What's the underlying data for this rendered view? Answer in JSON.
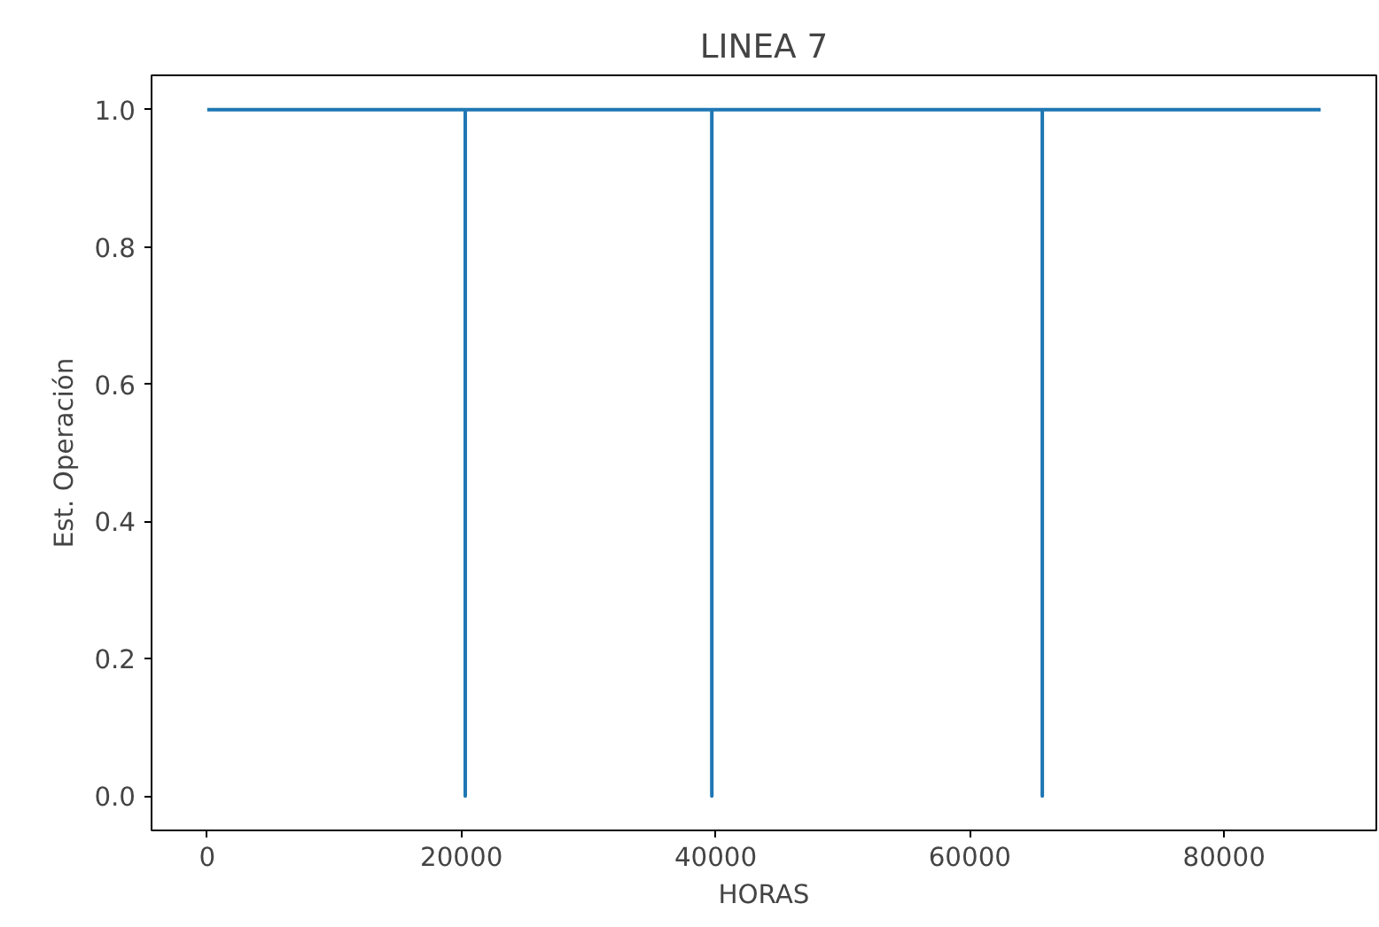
{
  "chart_data": {
    "type": "line",
    "title": "LINEA 7",
    "xlabel": "HORAS",
    "ylabel": "Est. Operación",
    "x": [
      0,
      20300,
      20300,
      20300,
      39700,
      39700,
      39700,
      65700,
      65700,
      65700,
      87600
    ],
    "series": [
      {
        "color": "#1f77b4",
        "values": [
          1,
          1,
          0,
          1,
          1,
          0,
          1,
          1,
          0,
          1,
          1
        ]
      }
    ],
    "xlim": [
      -4380,
      91980
    ],
    "ylim": [
      -0.05,
      1.05
    ],
    "xticks": [
      0,
      20000,
      40000,
      60000,
      80000
    ],
    "yticks": [
      {
        "value": 0,
        "label": "0.0"
      },
      {
        "value": 0.2,
        "label": "0.2"
      },
      {
        "value": 0.4,
        "label": "0.4"
      },
      {
        "value": 0.6,
        "label": "0.6"
      },
      {
        "value": 0.8,
        "label": "0.8"
      },
      {
        "value": 1,
        "label": "1.0"
      }
    ],
    "grid": false,
    "marker": "none",
    "line_style": "solid"
  }
}
